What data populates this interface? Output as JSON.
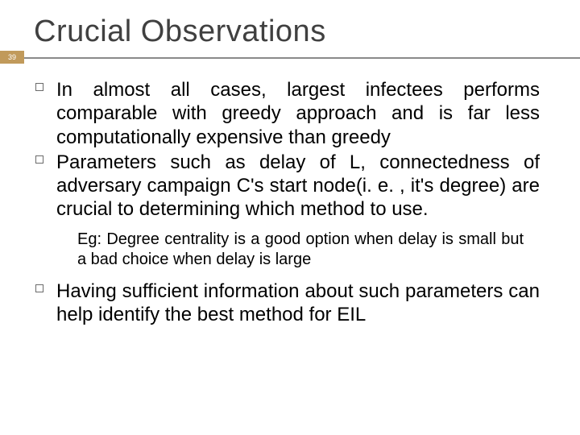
{
  "slide": {
    "title": "Crucial Observations",
    "page_number": "39",
    "title_color": "#404040",
    "title_fontsize": 38,
    "badge_bg": "#c19a5b",
    "rule_color": "#8a8a8a",
    "body_fontsize": 24,
    "sub_fontsize": 20,
    "bullets": [
      {
        "text": "In almost all cases, largest infectees performs comparable with greedy approach and is far less computationally expensive than greedy"
      },
      {
        "text": "Parameters such as delay of L, connectedness of adversary campaign C's start node(i. e. , it's degree) are crucial to determining which method to use.",
        "sub": "Eg: Degree centrality is a good option when delay is small but a bad choice when delay is large"
      },
      {
        "text": "Having sufficient information about such parameters can help identify the best method for EIL"
      }
    ]
  }
}
